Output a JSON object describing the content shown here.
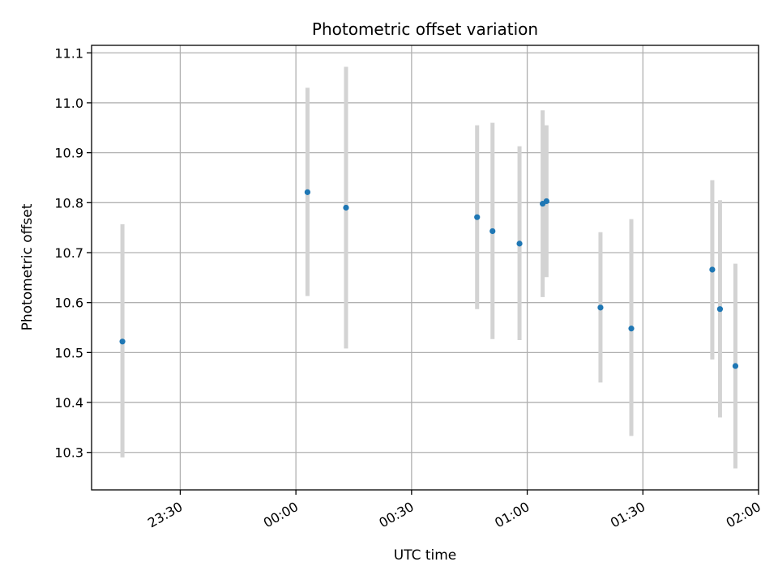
{
  "chart_data": {
    "type": "scatter",
    "title": "Photometric offset variation",
    "xlabel": "UTC time",
    "ylabel": "Photometric offset",
    "grid": true,
    "x_unit": "UTC",
    "xlim": [
      "23:07",
      "02:00"
    ],
    "ylim": [
      10.225,
      11.115
    ],
    "x_ticks": [
      "23:30",
      "00:00",
      "00:30",
      "01:00",
      "01:30",
      "02:00"
    ],
    "y_ticks": [
      10.3,
      10.4,
      10.5,
      10.6,
      10.7,
      10.8,
      10.9,
      11.0,
      11.1
    ],
    "y_tick_labels": [
      "10.3",
      "10.4",
      "10.5",
      "10.6",
      "10.7",
      "10.8",
      "10.9",
      "11.0",
      "11.1"
    ],
    "colors": {
      "points": "#1f77b4",
      "error_bars": "#d3d3d3",
      "grid": "#b0b0b0"
    },
    "series": [
      {
        "points": [
          {
            "x": "23:15",
            "y": 10.522,
            "ymin": 10.29,
            "ymax": 10.757
          },
          {
            "x": "00:03",
            "y": 10.821,
            "ymin": 10.613,
            "ymax": 11.03
          },
          {
            "x": "00:13",
            "y": 10.79,
            "ymin": 10.508,
            "ymax": 11.072
          },
          {
            "x": "00:47",
            "y": 10.771,
            "ymin": 10.587,
            "ymax": 10.955
          },
          {
            "x": "00:51",
            "y": 10.743,
            "ymin": 10.527,
            "ymax": 10.96
          },
          {
            "x": "00:58",
            "y": 10.718,
            "ymin": 10.525,
            "ymax": 10.913
          },
          {
            "x": "01:04",
            "y": 10.798,
            "ymin": 10.611,
            "ymax": 10.985
          },
          {
            "x": "01:05",
            "y": 10.803,
            "ymin": 10.651,
            "ymax": 10.955
          },
          {
            "x": "01:19",
            "y": 10.59,
            "ymin": 10.44,
            "ymax": 10.741
          },
          {
            "x": "01:27",
            "y": 10.548,
            "ymin": 10.333,
            "ymax": 10.767
          },
          {
            "x": "01:48",
            "y": 10.666,
            "ymin": 10.486,
            "ymax": 10.845
          },
          {
            "x": "01:50",
            "y": 10.587,
            "ymin": 10.37,
            "ymax": 10.805
          },
          {
            "x": "01:54",
            "y": 10.473,
            "ymin": 10.268,
            "ymax": 10.678
          }
        ]
      }
    ]
  }
}
